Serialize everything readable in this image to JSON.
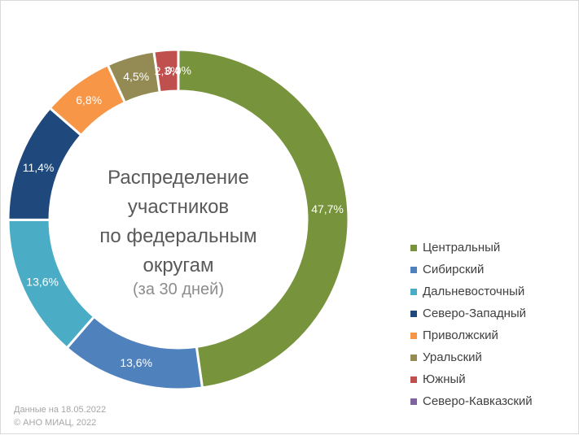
{
  "chart_data": {
    "type": "pie",
    "variant": "donut",
    "title_lines": [
      "Распределение",
      "участников",
      "по федеральным",
      "округам"
    ],
    "subtitle": "(за 30 дней)",
    "legend_position": "right",
    "series": [
      {
        "name": "Центральный",
        "label": "47,7%",
        "value": 47.7,
        "color": "#77933c"
      },
      {
        "name": "Сибирский",
        "label": "13,6%",
        "value": 13.6,
        "color": "#4f81bd"
      },
      {
        "name": "Дальневосточный",
        "label": "13,6%",
        "value": 13.6,
        "color": "#4bacc6"
      },
      {
        "name": "Северо-Западный",
        "label": "11,4%",
        "value": 11.4,
        "color": "#1f497d"
      },
      {
        "name": "Приволжский",
        "label": "6,8%",
        "value": 6.8,
        "color": "#f79646"
      },
      {
        "name": "Уральский",
        "label": "4,5%",
        "value": 4.5,
        "color": "#948a54"
      },
      {
        "name": "Южный",
        "label": "2,3%",
        "value": 2.3,
        "color": "#c0504d"
      },
      {
        "name": "Северо-Кавказский",
        "label": "0,0%",
        "value": 0.0,
        "color": "#8064a2"
      }
    ]
  },
  "footer": {
    "line1": "Данные на 18.05.2022",
    "line2": "© АНО МИАЦ, 2022"
  }
}
